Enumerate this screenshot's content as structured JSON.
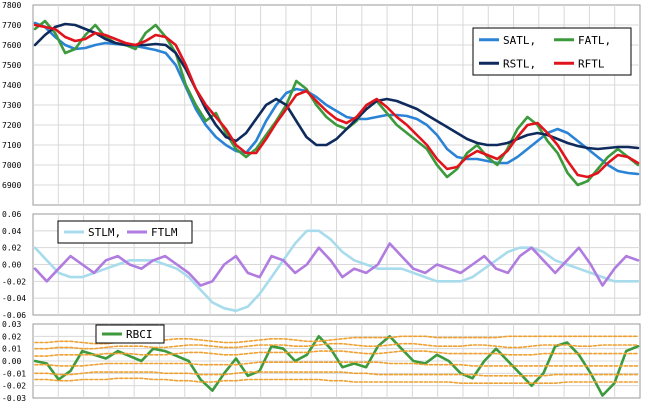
{
  "chart_data": [
    {
      "type": "line",
      "ylim": [
        6800,
        7800
      ],
      "yticks": [
        "7800",
        "7700",
        "7600",
        "7500",
        "7400",
        "7300",
        "7200",
        "7100",
        "7000",
        "6900"
      ],
      "legend": [
        "SATL,",
        "FATL,",
        "RSTL,",
        "RFTL"
      ],
      "series": [
        {
          "name": "SATL",
          "color": "#2b83d6",
          "values": [
            7710,
            7690,
            7640,
            7600,
            7580,
            7585,
            7600,
            7610,
            7605,
            7600,
            7595,
            7585,
            7575,
            7560,
            7500,
            7390,
            7280,
            7200,
            7140,
            7100,
            7070,
            7060,
            7120,
            7220,
            7300,
            7360,
            7380,
            7370,
            7340,
            7300,
            7270,
            7240,
            7230,
            7230,
            7240,
            7250,
            7250,
            7245,
            7230,
            7200,
            7150,
            7080,
            7040,
            7030,
            7030,
            7020,
            7010,
            7010,
            7040,
            7080,
            7120,
            7160,
            7180,
            7160,
            7120,
            7080,
            7040,
            7000,
            6970,
            6960,
            6955
          ]
        },
        {
          "name": "FATL",
          "color": "#3c9a3c",
          "values": [
            7680,
            7720,
            7660,
            7560,
            7580,
            7650,
            7700,
            7640,
            7610,
            7600,
            7580,
            7660,
            7700,
            7640,
            7560,
            7400,
            7300,
            7220,
            7260,
            7160,
            7080,
            7040,
            7080,
            7150,
            7220,
            7300,
            7420,
            7380,
            7300,
            7240,
            7200,
            7180,
            7220,
            7300,
            7320,
            7260,
            7200,
            7160,
            7120,
            7080,
            7000,
            6940,
            6980,
            7060,
            7100,
            7040,
            7000,
            7080,
            7180,
            7240,
            7200,
            7120,
            7060,
            6960,
            6900,
            6920,
            6980,
            7040,
            7080,
            7040,
            7000
          ]
        },
        {
          "name": "RSTL",
          "color": "#0f2a5c",
          "values": [
            7600,
            7650,
            7690,
            7705,
            7700,
            7680,
            7660,
            7630,
            7610,
            7600,
            7600,
            7600,
            7605,
            7600,
            7560,
            7480,
            7380,
            7280,
            7200,
            7140,
            7120,
            7160,
            7230,
            7300,
            7330,
            7300,
            7220,
            7140,
            7100,
            7100,
            7130,
            7180,
            7230,
            7280,
            7320,
            7330,
            7320,
            7300,
            7280,
            7250,
            7220,
            7190,
            7160,
            7130,
            7110,
            7100,
            7100,
            7110,
            7130,
            7150,
            7160,
            7150,
            7130,
            7110,
            7095,
            7085,
            7080,
            7085,
            7090,
            7090,
            7085
          ]
        },
        {
          "name": "RFTL",
          "color": "#e0141c",
          "values": [
            7700,
            7690,
            7680,
            7640,
            7620,
            7630,
            7660,
            7650,
            7630,
            7610,
            7600,
            7620,
            7650,
            7640,
            7600,
            7500,
            7380,
            7300,
            7240,
            7180,
            7100,
            7060,
            7060,
            7130,
            7210,
            7280,
            7350,
            7370,
            7320,
            7270,
            7230,
            7210,
            7240,
            7300,
            7330,
            7290,
            7240,
            7200,
            7150,
            7100,
            7030,
            6980,
            6990,
            7040,
            7070,
            7050,
            7030,
            7070,
            7140,
            7200,
            7210,
            7160,
            7100,
            7020,
            6950,
            6940,
            6960,
            7010,
            7050,
            7040,
            7010
          ]
        }
      ]
    },
    {
      "type": "line",
      "ylim": [
        -0.06,
        0.06
      ],
      "yticks": [
        "0.06",
        "0.04",
        "0.02",
        "0.00",
        "-0.02",
        "-0.04",
        "-0.06"
      ],
      "legend": [
        "STLM,",
        "FTLM"
      ],
      "series": [
        {
          "name": "STLM",
          "color": "#a8dcec",
          "values": [
            0.02,
            0.005,
            -0.01,
            -0.015,
            -0.015,
            -0.01,
            -0.005,
            0.0,
            0.005,
            0.005,
            0.005,
            0.0,
            -0.005,
            -0.015,
            -0.03,
            -0.045,
            -0.052,
            -0.055,
            -0.05,
            -0.035,
            -0.015,
            0.005,
            0.025,
            0.04,
            0.04,
            0.03,
            0.015,
            0.005,
            0.0,
            -0.005,
            -0.005,
            -0.005,
            -0.01,
            -0.015,
            -0.02,
            -0.02,
            -0.02,
            -0.015,
            -0.005,
            0.005,
            0.015,
            0.02,
            0.02,
            0.015,
            0.005,
            0.0,
            -0.005,
            -0.01,
            -0.015,
            -0.02,
            -0.02,
            -0.02
          ]
        },
        {
          "name": "FTLM",
          "color": "#b07ce0",
          "values": [
            -0.005,
            -0.02,
            -0.005,
            0.01,
            0.0,
            -0.01,
            0.005,
            0.01,
            0.0,
            -0.005,
            0.005,
            0.01,
            0.0,
            -0.01,
            -0.025,
            -0.02,
            0.0,
            0.01,
            -0.01,
            -0.015,
            0.01,
            0.005,
            -0.01,
            0.0,
            0.02,
            0.005,
            -0.015,
            -0.005,
            -0.01,
            0.0,
            0.025,
            0.01,
            -0.005,
            -0.01,
            0.0,
            -0.005,
            -0.01,
            0.0,
            0.01,
            -0.005,
            -0.01,
            0.01,
            0.02,
            0.005,
            -0.01,
            0.005,
            0.02,
            0.0,
            -0.025,
            -0.005,
            0.01,
            0.005
          ]
        }
      ]
    },
    {
      "type": "line",
      "ylim": [
        -0.03,
        0.03
      ],
      "yticks": [
        "0.03",
        "0.02",
        "0.01",
        "0.00",
        "-0.01",
        "-0.02",
        "-0.03"
      ],
      "legend": [
        "RBCI"
      ],
      "series": [
        {
          "name": "RBCI",
          "color": "#3c9a3c",
          "values": [
            0.0,
            -0.002,
            -0.015,
            -0.008,
            0.008,
            0.005,
            0.002,
            0.008,
            0.004,
            0.0,
            0.01,
            0.008,
            0.004,
            0.0,
            -0.015,
            -0.024,
            -0.01,
            0.002,
            -0.012,
            -0.008,
            0.012,
            0.01,
            0.0,
            0.005,
            0.02,
            0.01,
            -0.005,
            -0.002,
            -0.005,
            0.012,
            0.02,
            0.01,
            0.0,
            -0.002,
            0.005,
            0.0,
            -0.01,
            -0.014,
            0.0,
            0.01,
            0.0,
            -0.01,
            -0.02,
            -0.01,
            0.012,
            0.015,
            0.005,
            -0.01,
            -0.028,
            -0.018,
            0.008,
            0.012
          ]
        },
        {
          "name": "",
          "color": "#f0a030",
          "dashed": true,
          "values": [
            0.015,
            0.015,
            0.016,
            0.016,
            0.015,
            0.014,
            0.014,
            0.015,
            0.016,
            0.016,
            0.016,
            0.017,
            0.018,
            0.018,
            0.017,
            0.016,
            0.015,
            0.015,
            0.016,
            0.017,
            0.018,
            0.018,
            0.017,
            0.016,
            0.016,
            0.017,
            0.018,
            0.019,
            0.019,
            0.019,
            0.019,
            0.02,
            0.02,
            0.02,
            0.019,
            0.019,
            0.019,
            0.019,
            0.019,
            0.019,
            0.02,
            0.02,
            0.02,
            0.02,
            0.02,
            0.02,
            0.02,
            0.02,
            0.02,
            0.02,
            0.02,
            0.02
          ]
        },
        {
          "name": "",
          "color": "#f0a030",
          "dashed": true,
          "values": [
            0.01,
            0.01,
            0.011,
            0.011,
            0.01,
            0.01,
            0.011,
            0.012,
            0.012,
            0.012,
            0.011,
            0.011,
            0.012,
            0.013,
            0.013,
            0.012,
            0.011,
            0.011,
            0.012,
            0.013,
            0.013,
            0.013,
            0.012,
            0.012,
            0.013,
            0.014,
            0.014,
            0.013,
            0.012,
            0.012,
            0.013,
            0.014,
            0.014,
            0.013,
            0.012,
            0.012,
            0.012,
            0.013,
            0.013,
            0.012,
            0.011,
            0.011,
            0.012,
            0.013,
            0.013,
            0.013,
            0.012,
            0.012,
            0.013,
            0.013,
            0.013,
            0.013
          ]
        },
        {
          "name": "",
          "color": "#f0a030",
          "dashed": true,
          "values": [
            0.004,
            0.004,
            0.005,
            0.005,
            0.005,
            0.005,
            0.006,
            0.006,
            0.006,
            0.005,
            0.005,
            0.005,
            0.006,
            0.007,
            0.007,
            0.006,
            0.005,
            0.005,
            0.006,
            0.007,
            0.007,
            0.007,
            0.007,
            0.007,
            0.008,
            0.008,
            0.008,
            0.007,
            0.006,
            0.006,
            0.007,
            0.008,
            0.008,
            0.008,
            0.007,
            0.006,
            0.006,
            0.006,
            0.006,
            0.006,
            0.005,
            0.005,
            0.005,
            0.006,
            0.006,
            0.006,
            0.006,
            0.006,
            0.006,
            0.006,
            0.006,
            0.006
          ]
        },
        {
          "name": "",
          "color": "#f0a030",
          "dashed": true,
          "values": [
            -0.003,
            -0.003,
            -0.004,
            -0.004,
            -0.004,
            -0.003,
            -0.002,
            -0.002,
            -0.002,
            -0.002,
            -0.002,
            -0.002,
            -0.002,
            -0.002,
            -0.003,
            -0.003,
            -0.003,
            -0.003,
            -0.002,
            -0.001,
            -0.001,
            -0.001,
            -0.001,
            -0.001,
            -0.001,
            -0.001,
            -0.001,
            -0.001,
            -0.001,
            -0.001,
            -0.002,
            -0.002,
            -0.002,
            -0.003,
            -0.003,
            -0.003,
            -0.003,
            -0.004,
            -0.004,
            -0.004,
            -0.004,
            -0.004,
            -0.004,
            -0.004,
            -0.004,
            -0.004,
            -0.004,
            -0.004,
            -0.004,
            -0.004,
            -0.004,
            -0.004
          ]
        },
        {
          "name": "",
          "color": "#f0a030",
          "dashed": true,
          "values": [
            -0.01,
            -0.01,
            -0.011,
            -0.011,
            -0.01,
            -0.009,
            -0.009,
            -0.009,
            -0.009,
            -0.009,
            -0.009,
            -0.01,
            -0.01,
            -0.01,
            -0.011,
            -0.011,
            -0.011,
            -0.01,
            -0.009,
            -0.009,
            -0.009,
            -0.009,
            -0.009,
            -0.009,
            -0.009,
            -0.009,
            -0.009,
            -0.01,
            -0.01,
            -0.011,
            -0.011,
            -0.011,
            -0.011,
            -0.011,
            -0.011,
            -0.011,
            -0.011,
            -0.011,
            -0.012,
            -0.012,
            -0.012,
            -0.012,
            -0.012,
            -0.012,
            -0.011,
            -0.011,
            -0.011,
            -0.011,
            -0.011,
            -0.011,
            -0.011,
            -0.011
          ]
        },
        {
          "name": "",
          "color": "#f0a030",
          "dashed": true,
          "values": [
            -0.015,
            -0.015,
            -0.016,
            -0.016,
            -0.015,
            -0.015,
            -0.015,
            -0.014,
            -0.014,
            -0.014,
            -0.015,
            -0.015,
            -0.016,
            -0.016,
            -0.017,
            -0.017,
            -0.016,
            -0.016,
            -0.015,
            -0.015,
            -0.015,
            -0.015,
            -0.015,
            -0.015,
            -0.015,
            -0.016,
            -0.016,
            -0.017,
            -0.017,
            -0.017,
            -0.017,
            -0.017,
            -0.017,
            -0.017,
            -0.017,
            -0.017,
            -0.018,
            -0.018,
            -0.018,
            -0.018,
            -0.018,
            -0.018,
            -0.018,
            -0.018,
            -0.018,
            -0.017,
            -0.017,
            -0.017,
            -0.017,
            -0.017,
            -0.017,
            -0.017
          ]
        }
      ]
    }
  ]
}
